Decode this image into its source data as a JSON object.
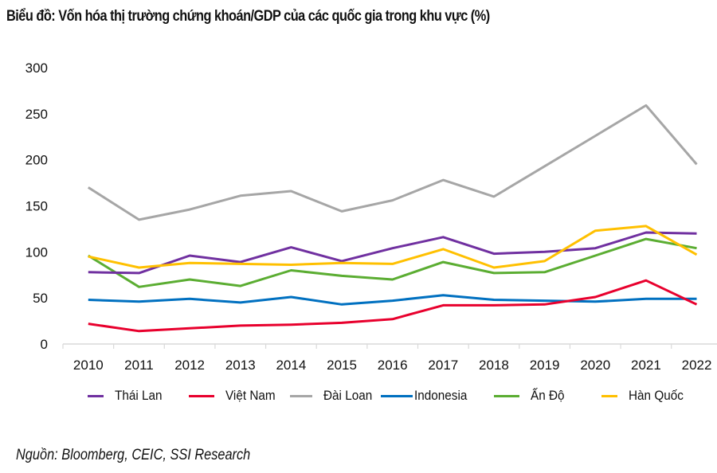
{
  "title": "Biểu đồ: Vốn hóa thị trường chứng khoán/GDP của các quốc gia trong khu vực (%)",
  "source": "Nguồn: Bloomberg, CEIC, SSI Research",
  "chart_data": {
    "type": "line",
    "title": "Biểu đồ: Vốn hóa thị trường chứng khoán/GDP của các quốc gia trong khu vực (%)",
    "xlabel": "",
    "ylabel": "",
    "ylim": [
      0,
      300
    ],
    "yticks": [
      "0",
      "50",
      "100",
      "150",
      "200",
      "250",
      "300"
    ],
    "grid": false,
    "legend_position": "bottom",
    "x": [
      "2010",
      "2011",
      "2012",
      "2013",
      "2014",
      "2015",
      "2016",
      "2017",
      "2018",
      "2019",
      "2020",
      "2021",
      "2022"
    ],
    "series": [
      {
        "name": "Thái Lan",
        "color": "#7030A0",
        "values": [
          78,
          77,
          96,
          89,
          105,
          90,
          104,
          116,
          98,
          100,
          104,
          121,
          120
        ]
      },
      {
        "name": "Việt Nam",
        "color": "#E8002D",
        "values": [
          22,
          14,
          17,
          20,
          21,
          23,
          27,
          42,
          42,
          43,
          51,
          69,
          43
        ]
      },
      {
        "name": "Đài Loan",
        "color": "#A6A6A6",
        "values": [
          170,
          135,
          146,
          161,
          166,
          144,
          156,
          178,
          160,
          193,
          226,
          259,
          195
        ]
      },
      {
        "name": "Indonesia",
        "color": "#0070C0",
        "values": [
          48,
          46,
          49,
          45,
          51,
          43,
          47,
          53,
          48,
          47,
          46,
          49,
          49
        ]
      },
      {
        "name": "Ấn Độ",
        "color": "#5BAD32",
        "values": [
          96,
          62,
          70,
          63,
          80,
          74,
          70,
          89,
          77,
          78,
          96,
          114,
          104
        ]
      },
      {
        "name": "Hàn Quốc",
        "color": "#FFC000",
        "values": [
          95,
          83,
          88,
          87,
          86,
          88,
          87,
          103,
          83,
          90,
          123,
          128,
          97
        ]
      }
    ]
  }
}
